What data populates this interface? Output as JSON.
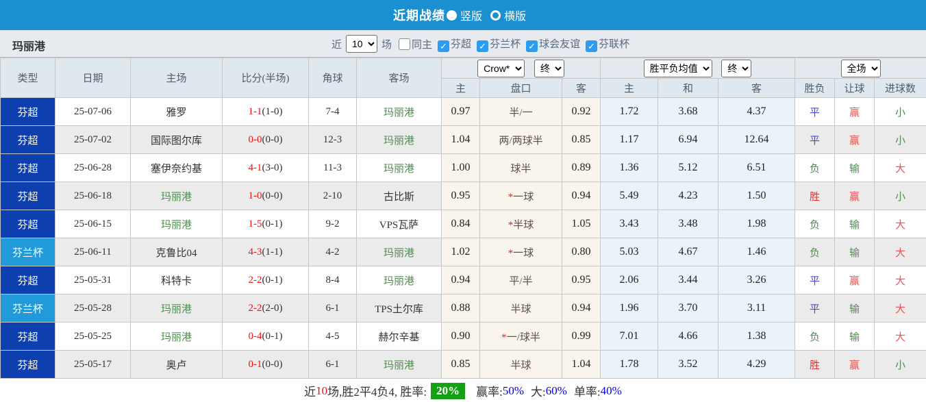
{
  "topbar": {
    "title": "近期战绩",
    "radio_vertical": "竖版",
    "radio_horizontal": "横版"
  },
  "filters": {
    "team": "玛丽港",
    "near_label": "近",
    "near_value": "10",
    "games_label": "场",
    "same_home_label": "同主",
    "leagues": [
      "芬超",
      "芬兰杯",
      "球会友谊",
      "芬联杯"
    ]
  },
  "header": {
    "type": "类型",
    "date": "日期",
    "home": "主场",
    "score": "比分(半场)",
    "corner": "角球",
    "away": "客场",
    "odds_source": "Crow*",
    "odds_time": "终",
    "ah_home": "主",
    "ah_pan": "盘口",
    "ah_away": "客",
    "europe_source": "胜平负均值",
    "europe_time": "终",
    "eu_home": "主",
    "eu_draw": "和",
    "eu_away": "客",
    "scope": "全场",
    "result_col": "胜负",
    "handicap_col": "让球",
    "goals_col": "进球数"
  },
  "rows": [
    {
      "type": "芬超",
      "date": "25-07-06",
      "home": "雅罗",
      "score": "1-1",
      "half": "(1-0)",
      "corner": "7-4",
      "away": "玛丽港",
      "o1": "0.97",
      "pan": "半/一",
      "o2": "0.92",
      "e1": "1.72",
      "e2": "3.68",
      "e3": "4.37",
      "res": "平",
      "hres": "赢",
      "gres": "小"
    },
    {
      "type": "芬超",
      "date": "25-07-02",
      "home": "国际图尔库",
      "score": "0-0",
      "half": "(0-0)",
      "corner": "12-3",
      "away": "玛丽港",
      "o1": "1.04",
      "pan": "两/两球半",
      "o2": "0.85",
      "e1": "1.17",
      "e2": "6.94",
      "e3": "12.64",
      "res": "平",
      "hres": "赢",
      "gres": "小"
    },
    {
      "type": "芬超",
      "date": "25-06-28",
      "home": "塞伊奈约基",
      "score": "4-1",
      "half": "(3-0)",
      "corner": "11-3",
      "away": "玛丽港",
      "o1": "1.00",
      "pan": "球半",
      "o2": "0.89",
      "e1": "1.36",
      "e2": "5.12",
      "e3": "6.51",
      "res": "负",
      "hres": "输",
      "gres": "大"
    },
    {
      "type": "芬超",
      "date": "25-06-18",
      "home": "玛丽港",
      "score": "1-0",
      "half": "(0-0)",
      "corner": "2-10",
      "away": "古比斯",
      "o1": "0.95",
      "pan": "*一球",
      "o2": "0.94",
      "e1": "5.49",
      "e2": "4.23",
      "e3": "1.50",
      "res": "胜",
      "hres": "赢",
      "gres": "小"
    },
    {
      "type": "芬超",
      "date": "25-06-15",
      "home": "玛丽港",
      "score": "1-5",
      "half": "(0-1)",
      "corner": "9-2",
      "away": "VPS瓦萨",
      "o1": "0.84",
      "pan": "*半球",
      "o2": "1.05",
      "e1": "3.43",
      "e2": "3.48",
      "e3": "1.98",
      "res": "负",
      "hres": "输",
      "gres": "大"
    },
    {
      "type": "芬兰杯",
      "date": "25-06-11",
      "home": "克鲁比04",
      "score": "4-3",
      "half": "(1-1)",
      "corner": "4-2",
      "away": "玛丽港",
      "o1": "1.02",
      "pan": "*一球",
      "o2": "0.80",
      "e1": "5.03",
      "e2": "4.67",
      "e3": "1.46",
      "res": "负",
      "hres": "输",
      "gres": "大"
    },
    {
      "type": "芬超",
      "date": "25-05-31",
      "home": "科特卡",
      "score": "2-2",
      "half": "(0-1)",
      "corner": "8-4",
      "away": "玛丽港",
      "o1": "0.94",
      "pan": "平/半",
      "o2": "0.95",
      "e1": "2.06",
      "e2": "3.44",
      "e3": "3.26",
      "res": "平",
      "hres": "赢",
      "gres": "大"
    },
    {
      "type": "芬兰杯",
      "date": "25-05-28",
      "home": "玛丽港",
      "score": "2-2",
      "half": "(2-0)",
      "corner": "6-1",
      "away": "TPS土尔库",
      "o1": "0.88",
      "pan": "半球",
      "o2": "0.94",
      "e1": "1.96",
      "e2": "3.70",
      "e3": "3.11",
      "res": "平",
      "hres": "输",
      "gres": "大"
    },
    {
      "type": "芬超",
      "date": "25-05-25",
      "home": "玛丽港",
      "score": "0-4",
      "half": "(0-1)",
      "corner": "4-5",
      "away": "赫尔辛基",
      "o1": "0.90",
      "pan": "*一/球半",
      "o2": "0.99",
      "e1": "7.01",
      "e2": "4.66",
      "e3": "1.38",
      "res": "负",
      "hres": "输",
      "gres": "大"
    },
    {
      "type": "芬超",
      "date": "25-05-17",
      "home": "奥卢",
      "score": "0-1",
      "half": "(0-0)",
      "corner": "6-1",
      "away": "玛丽港",
      "o1": "0.85",
      "pan": "半球",
      "o2": "1.04",
      "e1": "1.78",
      "e2": "3.52",
      "e3": "4.29",
      "res": "胜",
      "hres": "赢",
      "gres": "小"
    }
  ],
  "footer": {
    "prefix": "近",
    "count": "10",
    "summary": "场,胜2平4负4, 胜率:",
    "rate": "20%",
    "win_label": "赢率:",
    "win": "50%",
    "big_label": "大:",
    "big": "60%",
    "single_label": "单率:",
    "single": "40%"
  },
  "colors": {
    "topbar": "#1a90d0",
    "type_league": "#0e3fae",
    "type_cup": "#209ad8",
    "ah_bg": "#faf5ec",
    "eu_bg": "#eaf3f9",
    "self_team": "#4e8d4e",
    "score_red": "#ee1111",
    "rate_green": "#16a016",
    "pct_blue": "#0000e0",
    "win": "#e03030",
    "draw": "#4646d8",
    "lose": "#4e8d4e"
  },
  "icons": {
    "check": "✓"
  }
}
